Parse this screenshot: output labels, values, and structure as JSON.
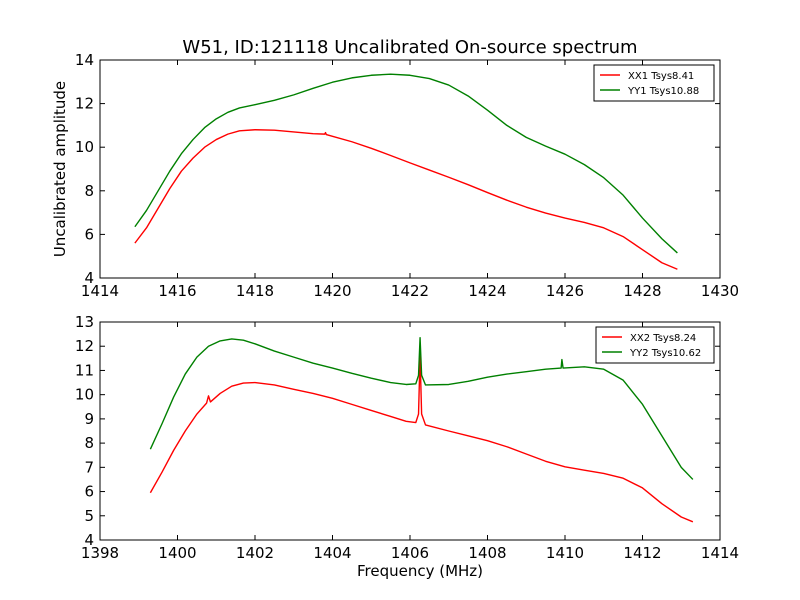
{
  "title": "W51, ID:121118 Uncalibrated On-source spectrum",
  "chart_data": [
    {
      "type": "line",
      "title": "W51, ID:121118 Uncalibrated On-source spectrum",
      "xlabel": "",
      "ylabel": "Uncalibrated amplitude",
      "xlim": [
        1414,
        1430
      ],
      "ylim": [
        4,
        14
      ],
      "xticks": [
        1414,
        1416,
        1418,
        1420,
        1422,
        1424,
        1426,
        1428,
        1430
      ],
      "yticks": [
        4,
        6,
        8,
        10,
        12,
        14
      ],
      "legend_position": "top-right",
      "series": [
        {
          "name": "XX1 Tsys8.41",
          "color": "#ff0000",
          "points": [
            [
              1414.9,
              5.6
            ],
            [
              1415.2,
              6.3
            ],
            [
              1415.5,
              7.2
            ],
            [
              1415.8,
              8.1
            ],
            [
              1416.1,
              8.9
            ],
            [
              1416.4,
              9.5
            ],
            [
              1416.7,
              10.0
            ],
            [
              1417.0,
              10.35
            ],
            [
              1417.3,
              10.6
            ],
            [
              1417.6,
              10.75
            ],
            [
              1418.0,
              10.8
            ],
            [
              1418.5,
              10.78
            ],
            [
              1419.0,
              10.7
            ],
            [
              1419.5,
              10.62
            ],
            [
              1419.8,
              10.6
            ],
            [
              1419.82,
              10.67
            ],
            [
              1419.84,
              10.58
            ],
            [
              1420.0,
              10.5
            ],
            [
              1420.5,
              10.25
            ],
            [
              1421.0,
              9.95
            ],
            [
              1421.5,
              9.62
            ],
            [
              1422.0,
              9.28
            ],
            [
              1422.5,
              8.95
            ],
            [
              1423.0,
              8.62
            ],
            [
              1423.5,
              8.28
            ],
            [
              1424.0,
              7.92
            ],
            [
              1424.5,
              7.57
            ],
            [
              1425.0,
              7.25
            ],
            [
              1425.5,
              6.98
            ],
            [
              1426.0,
              6.75
            ],
            [
              1426.5,
              6.55
            ],
            [
              1427.0,
              6.3
            ],
            [
              1427.5,
              5.9
            ],
            [
              1428.0,
              5.3
            ],
            [
              1428.5,
              4.7
            ],
            [
              1428.9,
              4.4
            ]
          ]
        },
        {
          "name": "YY1 Tsys10.88",
          "color": "#008000",
          "points": [
            [
              1414.9,
              6.35
            ],
            [
              1415.2,
              7.1
            ],
            [
              1415.5,
              8.0
            ],
            [
              1415.8,
              8.9
            ],
            [
              1416.1,
              9.7
            ],
            [
              1416.4,
              10.35
            ],
            [
              1416.7,
              10.9
            ],
            [
              1417.0,
              11.3
            ],
            [
              1417.3,
              11.6
            ],
            [
              1417.6,
              11.8
            ],
            [
              1418.0,
              11.95
            ],
            [
              1418.5,
              12.15
            ],
            [
              1419.0,
              12.4
            ],
            [
              1419.5,
              12.7
            ],
            [
              1420.0,
              12.98
            ],
            [
              1420.5,
              13.18
            ],
            [
              1421.0,
              13.3
            ],
            [
              1421.5,
              13.35
            ],
            [
              1422.0,
              13.3
            ],
            [
              1422.5,
              13.15
            ],
            [
              1423.0,
              12.85
            ],
            [
              1423.5,
              12.35
            ],
            [
              1424.0,
              11.7
            ],
            [
              1424.5,
              11.0
            ],
            [
              1425.0,
              10.45
            ],
            [
              1425.5,
              10.05
            ],
            [
              1426.0,
              9.68
            ],
            [
              1426.5,
              9.2
            ],
            [
              1427.0,
              8.6
            ],
            [
              1427.5,
              7.8
            ],
            [
              1428.0,
              6.75
            ],
            [
              1428.5,
              5.8
            ],
            [
              1428.9,
              5.15
            ]
          ]
        }
      ]
    },
    {
      "type": "line",
      "title": "",
      "xlabel": "Frequency (MHz)",
      "ylabel": "",
      "xlim": [
        1398,
        1414
      ],
      "ylim": [
        4,
        13
      ],
      "xticks": [
        1398,
        1400,
        1402,
        1404,
        1406,
        1408,
        1410,
        1412,
        1414
      ],
      "yticks": [
        4,
        5,
        6,
        7,
        8,
        9,
        10,
        11,
        12,
        13
      ],
      "legend_position": "top-right",
      "series": [
        {
          "name": "XX2 Tsys8.24",
          "color": "#ff0000",
          "points": [
            [
              1399.3,
              5.95
            ],
            [
              1399.6,
              6.8
            ],
            [
              1399.9,
              7.7
            ],
            [
              1400.2,
              8.5
            ],
            [
              1400.5,
              9.2
            ],
            [
              1400.75,
              9.65
            ],
            [
              1400.8,
              9.95
            ],
            [
              1400.85,
              9.7
            ],
            [
              1401.1,
              10.05
            ],
            [
              1401.4,
              10.35
            ],
            [
              1401.7,
              10.48
            ],
            [
              1402.0,
              10.5
            ],
            [
              1402.5,
              10.4
            ],
            [
              1403.0,
              10.22
            ],
            [
              1403.5,
              10.05
            ],
            [
              1404.0,
              9.85
            ],
            [
              1404.5,
              9.6
            ],
            [
              1405.0,
              9.35
            ],
            [
              1405.5,
              9.1
            ],
            [
              1405.9,
              8.9
            ],
            [
              1406.15,
              8.85
            ],
            [
              1406.22,
              9.2
            ],
            [
              1406.26,
              11.6
            ],
            [
              1406.3,
              9.2
            ],
            [
              1406.4,
              8.75
            ],
            [
              1407.0,
              8.5
            ],
            [
              1407.5,
              8.3
            ],
            [
              1408.0,
              8.1
            ],
            [
              1408.5,
              7.85
            ],
            [
              1409.0,
              7.55
            ],
            [
              1409.5,
              7.25
            ],
            [
              1410.0,
              7.02
            ],
            [
              1410.5,
              6.88
            ],
            [
              1411.0,
              6.75
            ],
            [
              1411.5,
              6.55
            ],
            [
              1412.0,
              6.15
            ],
            [
              1412.5,
              5.5
            ],
            [
              1413.0,
              4.95
            ],
            [
              1413.3,
              4.75
            ]
          ]
        },
        {
          "name": "YY2 Tsys10.62",
          "color": "#008000",
          "points": [
            [
              1399.3,
              7.75
            ],
            [
              1399.6,
              8.8
            ],
            [
              1399.9,
              9.9
            ],
            [
              1400.2,
              10.85
            ],
            [
              1400.5,
              11.55
            ],
            [
              1400.8,
              12.0
            ],
            [
              1401.1,
              12.22
            ],
            [
              1401.4,
              12.3
            ],
            [
              1401.7,
              12.25
            ],
            [
              1402.0,
              12.1
            ],
            [
              1402.5,
              11.8
            ],
            [
              1403.0,
              11.55
            ],
            [
              1403.5,
              11.3
            ],
            [
              1404.0,
              11.1
            ],
            [
              1404.5,
              10.88
            ],
            [
              1405.0,
              10.68
            ],
            [
              1405.5,
              10.5
            ],
            [
              1405.9,
              10.42
            ],
            [
              1406.15,
              10.45
            ],
            [
              1406.22,
              10.8
            ],
            [
              1406.26,
              12.35
            ],
            [
              1406.3,
              10.8
            ],
            [
              1406.4,
              10.4
            ],
            [
              1407.0,
              10.42
            ],
            [
              1407.5,
              10.55
            ],
            [
              1408.0,
              10.72
            ],
            [
              1408.5,
              10.85
            ],
            [
              1409.0,
              10.95
            ],
            [
              1409.5,
              11.05
            ],
            [
              1409.9,
              11.1
            ],
            [
              1409.92,
              11.45
            ],
            [
              1409.95,
              11.1
            ],
            [
              1410.5,
              11.15
            ],
            [
              1411.0,
              11.05
            ],
            [
              1411.5,
              10.6
            ],
            [
              1412.0,
              9.6
            ],
            [
              1412.5,
              8.3
            ],
            [
              1413.0,
              7.0
            ],
            [
              1413.3,
              6.5
            ]
          ]
        }
      ]
    }
  ]
}
